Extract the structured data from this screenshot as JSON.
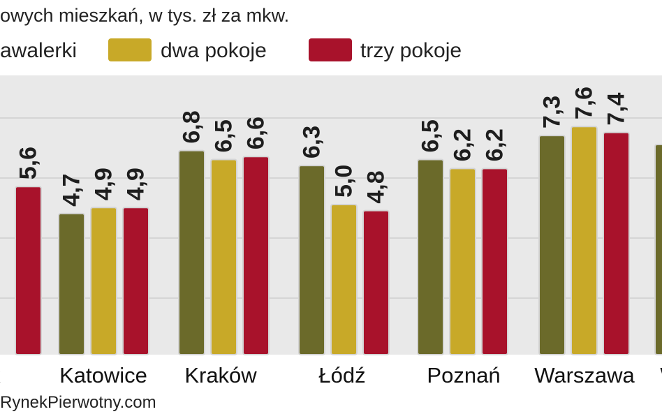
{
  "title": "owych mieszkań, w tys. zł za mkw.",
  "source": "RynekPierwotny.com",
  "chart_data": {
    "type": "bar",
    "title": "owych mieszkań, w tys. zł za mkw.",
    "categories": [
      "sk",
      "Katowice",
      "Kraków",
      "Łódź",
      "Poznań",
      "Warszawa",
      "W"
    ],
    "series": [
      {
        "name": "awalerki",
        "values": [
          null,
          4.7,
          6.8,
          6.3,
          6.5,
          7.3,
          null
        ],
        "labels": [
          null,
          "4,7",
          "6,8",
          "6,3",
          "6,5",
          "7,3",
          null
        ],
        "color": "#6b6a2a"
      },
      {
        "name": "dwa pokoje",
        "values": [
          null,
          4.9,
          6.5,
          5.0,
          6.2,
          7.6,
          null
        ],
        "labels": [
          null,
          "4,9",
          "6,5",
          "5,0",
          "6,2",
          "7,6",
          null
        ],
        "color": "#c8a928"
      },
      {
        "name": "trzy pokoje",
        "values": [
          5.6,
          4.9,
          6.6,
          4.8,
          6.2,
          7.4,
          null
        ],
        "labels": [
          "5,6",
          "4,9",
          "6,6",
          "4,8",
          "6,2",
          "7,4",
          null
        ],
        "color": "#a8122b"
      }
    ],
    "partial_right_bar": {
      "value": 7.0,
      "color": "#6b6a2a"
    },
    "ylim": [
      0,
      9
    ],
    "grid": true,
    "legend": "top"
  }
}
